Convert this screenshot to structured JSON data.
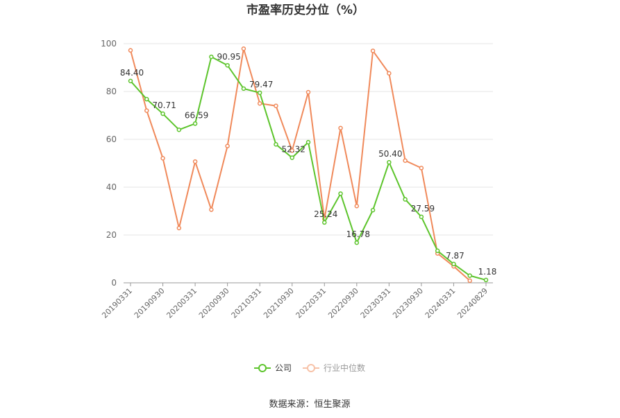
{
  "chart_data": {
    "type": "line",
    "title": "市盈率历史分位（%）",
    "source": "数据来源：恒生聚源",
    "ylim": [
      0,
      100
    ],
    "yticks": [
      0,
      20,
      40,
      60,
      80,
      100
    ],
    "grid": true,
    "legend_position": "bottom",
    "x": [
      "20190331",
      "20190630",
      "20190930",
      "20191231",
      "20200331",
      "20200630",
      "20200930",
      "20201231",
      "20210331",
      "20210630",
      "20210930",
      "20211231",
      "20220331",
      "20220630",
      "20220930",
      "20221231",
      "20230331",
      "20230630",
      "20230930",
      "20231231",
      "20240331",
      "20240630",
      "20240829"
    ],
    "x_tick_labels": [
      "20190331",
      "20190930",
      "20200331",
      "20200930",
      "20210331",
      "20210930",
      "20220331",
      "20220930",
      "20230331",
      "20230930",
      "20240331",
      "20240829"
    ],
    "series": [
      {
        "name": "公司",
        "color": "#5cc42b",
        "values": [
          84.4,
          76.8,
          70.71,
          64.0,
          66.59,
          94.5,
          90.95,
          81.2,
          79.47,
          57.9,
          52.32,
          58.8,
          25.24,
          37.3,
          16.78,
          30.4,
          50.4,
          34.9,
          27.59,
          13.4,
          7.87,
          3.0,
          1.18
        ],
        "data_labels": {
          "0": "84.40",
          "2": "70.71",
          "4": "66.59",
          "6": "90.95",
          "8": "79.47",
          "10": "52.32",
          "12": "25.24",
          "14": "16.78",
          "16": "50.40",
          "18": "27.59",
          "20": "7.87",
          "22": "1.18"
        }
      },
      {
        "name": "行业中位数",
        "color": "#f0895a",
        "values": [
          97.2,
          72.0,
          52.1,
          22.9,
          50.7,
          30.6,
          57.2,
          97.9,
          75.0,
          74.0,
          55.3,
          79.7,
          26.7,
          64.7,
          32.1,
          97.0,
          87.6,
          51.1,
          48.0,
          12.3,
          6.9,
          0.9,
          null
        ]
      }
    ]
  }
}
